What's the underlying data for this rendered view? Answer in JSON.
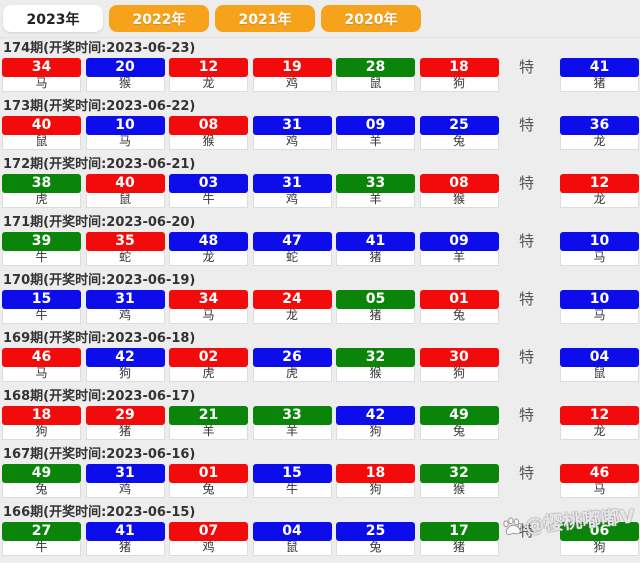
{
  "page": {
    "background": "#ededed"
  },
  "colors": {
    "red": "#f30b0b",
    "blue": "#0d0deb",
    "green": "#0a850a",
    "tab_orange": "#f7a21b"
  },
  "tabs": [
    {
      "label": "2023年",
      "active": true
    },
    {
      "label": "2022年",
      "active": false
    },
    {
      "label": "2021年",
      "active": false
    },
    {
      "label": "2020年",
      "active": false
    }
  ],
  "labels": {
    "special": "特"
  },
  "watermark": {
    "text": "@樱桃嘟嘟V",
    "icon": "paw-icon"
  },
  "draws": [
    {
      "period_label": "174期",
      "time_label": "(开奖时间:2023-06-23)",
      "balls": [
        {
          "num": "34",
          "color": "red",
          "zodiac": "马"
        },
        {
          "num": "20",
          "color": "blue",
          "zodiac": "猴"
        },
        {
          "num": "12",
          "color": "red",
          "zodiac": "龙"
        },
        {
          "num": "19",
          "color": "red",
          "zodiac": "鸡"
        },
        {
          "num": "28",
          "color": "green",
          "zodiac": "鼠"
        },
        {
          "num": "18",
          "color": "red",
          "zodiac": "狗"
        }
      ],
      "special": {
        "num": "41",
        "color": "blue",
        "zodiac": "猪"
      }
    },
    {
      "period_label": "173期",
      "time_label": "(开奖时间:2023-06-22)",
      "balls": [
        {
          "num": "40",
          "color": "red",
          "zodiac": "鼠"
        },
        {
          "num": "10",
          "color": "blue",
          "zodiac": "马"
        },
        {
          "num": "08",
          "color": "red",
          "zodiac": "猴"
        },
        {
          "num": "31",
          "color": "blue",
          "zodiac": "鸡"
        },
        {
          "num": "09",
          "color": "blue",
          "zodiac": "羊"
        },
        {
          "num": "25",
          "color": "blue",
          "zodiac": "兔"
        }
      ],
      "special": {
        "num": "36",
        "color": "blue",
        "zodiac": "龙"
      }
    },
    {
      "period_label": "172期",
      "time_label": "(开奖时间:2023-06-21)",
      "balls": [
        {
          "num": "38",
          "color": "green",
          "zodiac": "虎"
        },
        {
          "num": "40",
          "color": "red",
          "zodiac": "鼠"
        },
        {
          "num": "03",
          "color": "blue",
          "zodiac": "牛"
        },
        {
          "num": "31",
          "color": "blue",
          "zodiac": "鸡"
        },
        {
          "num": "33",
          "color": "green",
          "zodiac": "羊"
        },
        {
          "num": "08",
          "color": "red",
          "zodiac": "猴"
        }
      ],
      "special": {
        "num": "12",
        "color": "red",
        "zodiac": "龙"
      }
    },
    {
      "period_label": "171期",
      "time_label": "(开奖时间:2023-06-20)",
      "balls": [
        {
          "num": "39",
          "color": "green",
          "zodiac": "牛"
        },
        {
          "num": "35",
          "color": "red",
          "zodiac": "蛇"
        },
        {
          "num": "48",
          "color": "blue",
          "zodiac": "龙"
        },
        {
          "num": "47",
          "color": "blue",
          "zodiac": "蛇"
        },
        {
          "num": "41",
          "color": "blue",
          "zodiac": "猪"
        },
        {
          "num": "09",
          "color": "blue",
          "zodiac": "羊"
        }
      ],
      "special": {
        "num": "10",
        "color": "blue",
        "zodiac": "马"
      }
    },
    {
      "period_label": "170期",
      "time_label": "(开奖时间:2023-06-19)",
      "balls": [
        {
          "num": "15",
          "color": "blue",
          "zodiac": "牛"
        },
        {
          "num": "31",
          "color": "blue",
          "zodiac": "鸡"
        },
        {
          "num": "34",
          "color": "red",
          "zodiac": "马"
        },
        {
          "num": "24",
          "color": "red",
          "zodiac": "龙"
        },
        {
          "num": "05",
          "color": "green",
          "zodiac": "猪"
        },
        {
          "num": "01",
          "color": "red",
          "zodiac": "兔"
        }
      ],
      "special": {
        "num": "10",
        "color": "blue",
        "zodiac": "马"
      }
    },
    {
      "period_label": "169期",
      "time_label": "(开奖时间:2023-06-18)",
      "balls": [
        {
          "num": "46",
          "color": "red",
          "zodiac": "马"
        },
        {
          "num": "42",
          "color": "blue",
          "zodiac": "狗"
        },
        {
          "num": "02",
          "color": "red",
          "zodiac": "虎"
        },
        {
          "num": "26",
          "color": "blue",
          "zodiac": "虎"
        },
        {
          "num": "32",
          "color": "green",
          "zodiac": "猴"
        },
        {
          "num": "30",
          "color": "red",
          "zodiac": "狗"
        }
      ],
      "special": {
        "num": "04",
        "color": "blue",
        "zodiac": "鼠"
      }
    },
    {
      "period_label": "168期",
      "time_label": "(开奖时间:2023-06-17)",
      "balls": [
        {
          "num": "18",
          "color": "red",
          "zodiac": "狗"
        },
        {
          "num": "29",
          "color": "red",
          "zodiac": "猪"
        },
        {
          "num": "21",
          "color": "green",
          "zodiac": "羊"
        },
        {
          "num": "33",
          "color": "green",
          "zodiac": "羊"
        },
        {
          "num": "42",
          "color": "blue",
          "zodiac": "狗"
        },
        {
          "num": "49",
          "color": "green",
          "zodiac": "兔"
        }
      ],
      "special": {
        "num": "12",
        "color": "red",
        "zodiac": "龙"
      }
    },
    {
      "period_label": "167期",
      "time_label": "(开奖时间:2023-06-16)",
      "balls": [
        {
          "num": "49",
          "color": "green",
          "zodiac": "兔"
        },
        {
          "num": "31",
          "color": "blue",
          "zodiac": "鸡"
        },
        {
          "num": "01",
          "color": "red",
          "zodiac": "兔"
        },
        {
          "num": "15",
          "color": "blue",
          "zodiac": "牛"
        },
        {
          "num": "18",
          "color": "red",
          "zodiac": "狗"
        },
        {
          "num": "32",
          "color": "green",
          "zodiac": "猴"
        }
      ],
      "special": {
        "num": "46",
        "color": "red",
        "zodiac": "马"
      }
    },
    {
      "period_label": "166期",
      "time_label": "(开奖时间:2023-06-15)",
      "balls": [
        {
          "num": "27",
          "color": "green",
          "zodiac": "牛"
        },
        {
          "num": "41",
          "color": "blue",
          "zodiac": "猪"
        },
        {
          "num": "07",
          "color": "red",
          "zodiac": "鸡"
        },
        {
          "num": "04",
          "color": "blue",
          "zodiac": "鼠"
        },
        {
          "num": "25",
          "color": "blue",
          "zodiac": "兔"
        },
        {
          "num": "17",
          "color": "green",
          "zodiac": "猪"
        }
      ],
      "special": {
        "num": "06",
        "color": "green",
        "zodiac": "狗"
      }
    }
  ]
}
